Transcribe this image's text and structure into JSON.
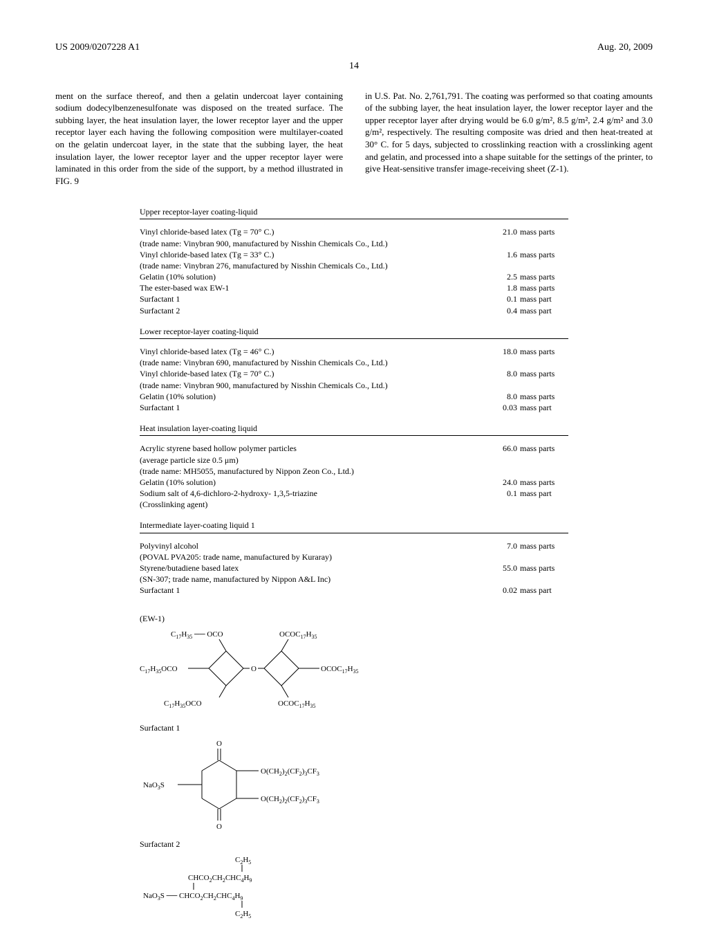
{
  "header": {
    "pubnum": "US 2009/0207228 A1",
    "date": "Aug. 20, 2009",
    "page": "14"
  },
  "leftcol": "ment on the surface thereof, and then a gelatin undercoat layer containing sodium dodecylbenzenesulfonate was disposed on the treated surface. The subbing layer, the heat insulation layer, the lower receptor layer and the upper receptor layer each having the following composition were multilayer-coated on the gelatin undercoat layer, in the state that the subbing layer, the heat insulation layer, the lower receptor layer and the upper receptor layer were laminated in this order from the side of the support, by a method illustrated in FIG. 9",
  "rightcol": "in U.S. Pat. No. 2,761,791. The coating was performed so that coating amounts of the subbing layer, the heat insulation layer, the lower receptor layer and the upper receptor layer after drying would be 6.0 g/m², 8.5 g/m², 2.4 g/m² and 3.0 g/m², respectively. The resulting composite was dried and then heat-treated at 30° C. for 5 days, subjected to crosslinking reaction with a crosslinking agent and gelatin, and processed into a shape suitable for the settings of the printer, to give Heat-sensitive transfer image-receiving sheet (Z-1).",
  "sections": [
    {
      "title": "Upper receptor-layer coating-liquid",
      "rows": [
        {
          "desc": "Vinyl chloride-based latex (Tg = 70° C.)",
          "note": "(trade name: Vinybran 900, manufactured by Nisshin Chemicals Co., Ltd.)",
          "amt": "21.0",
          "unit": "mass parts"
        },
        {
          "desc": "Vinyl chloride-based latex (Tg = 33° C.)",
          "note": "(trade name: Vinybran 276, manufactured by Nisshin Chemicals Co., Ltd.)",
          "amt": "1.6",
          "unit": "mass parts"
        },
        {
          "desc": "Gelatin (10% solution)",
          "amt": "2.5",
          "unit": "mass parts"
        },
        {
          "desc": "The ester-based wax EW-1",
          "amt": "1.8",
          "unit": "mass parts"
        },
        {
          "desc": "Surfactant 1",
          "amt": "0.1",
          "unit": "mass part"
        },
        {
          "desc": "Surfactant 2",
          "amt": "0.4",
          "unit": "mass part"
        }
      ]
    },
    {
      "title": "Lower receptor-layer coating-liquid",
      "rows": [
        {
          "desc": "Vinyl chloride-based latex (Tg = 46° C.)",
          "note": "(trade name: Vinybran 690, manufactured by Nisshin Chemicals Co., Ltd.)",
          "amt": "18.0",
          "unit": "mass parts"
        },
        {
          "desc": "Vinyl chloride-based latex (Tg = 70° C.)",
          "note": "(trade name: Vinybran 900, manufactured by Nisshin Chemicals Co., Ltd.)",
          "amt": "8.0",
          "unit": "mass parts"
        },
        {
          "desc": "Gelatin (10% solution)",
          "amt": "8.0",
          "unit": "mass parts"
        },
        {
          "desc": "Surfactant 1",
          "amt": "0.03",
          "unit": "mass part"
        }
      ]
    },
    {
      "title": "Heat insulation layer-coating liquid",
      "rows": [
        {
          "desc": "Acrylic styrene based hollow polymer particles",
          "note": "(average particle size 0.5 μm)\n(trade name: MH5055, manufactured by Nippon Zeon Co., Ltd.)",
          "amt": "66.0",
          "unit": "mass parts"
        },
        {
          "desc": "Gelatin (10% solution)",
          "amt": "24.0",
          "unit": "mass parts"
        },
        {
          "desc": "Sodium salt of 4,6-dichloro-2-hydroxy- 1,3,5-triazine",
          "note": "(Crosslinking agent)",
          "amt": "0.1",
          "unit": "mass part"
        }
      ]
    },
    {
      "title": "Intermediate layer-coating liquid 1",
      "rows": [
        {
          "desc": "Polyvinyl alcohol",
          "note": "(POVAL PVA205: trade name, manufactured by Kuraray)",
          "amt": "7.0",
          "unit": "mass parts"
        },
        {
          "desc": "Styrene/butadiene based latex",
          "note": "(SN-307; trade name, manufactured by Nippon A&L Inc)",
          "amt": "55.0",
          "unit": "mass parts"
        },
        {
          "desc": "Surfactant 1",
          "amt": "0.02",
          "unit": "mass part"
        }
      ]
    }
  ],
  "chem": {
    "ew1_label": "(EW-1)",
    "surf1_label": "Surfactant 1",
    "surf2_label": "Surfactant 2"
  }
}
